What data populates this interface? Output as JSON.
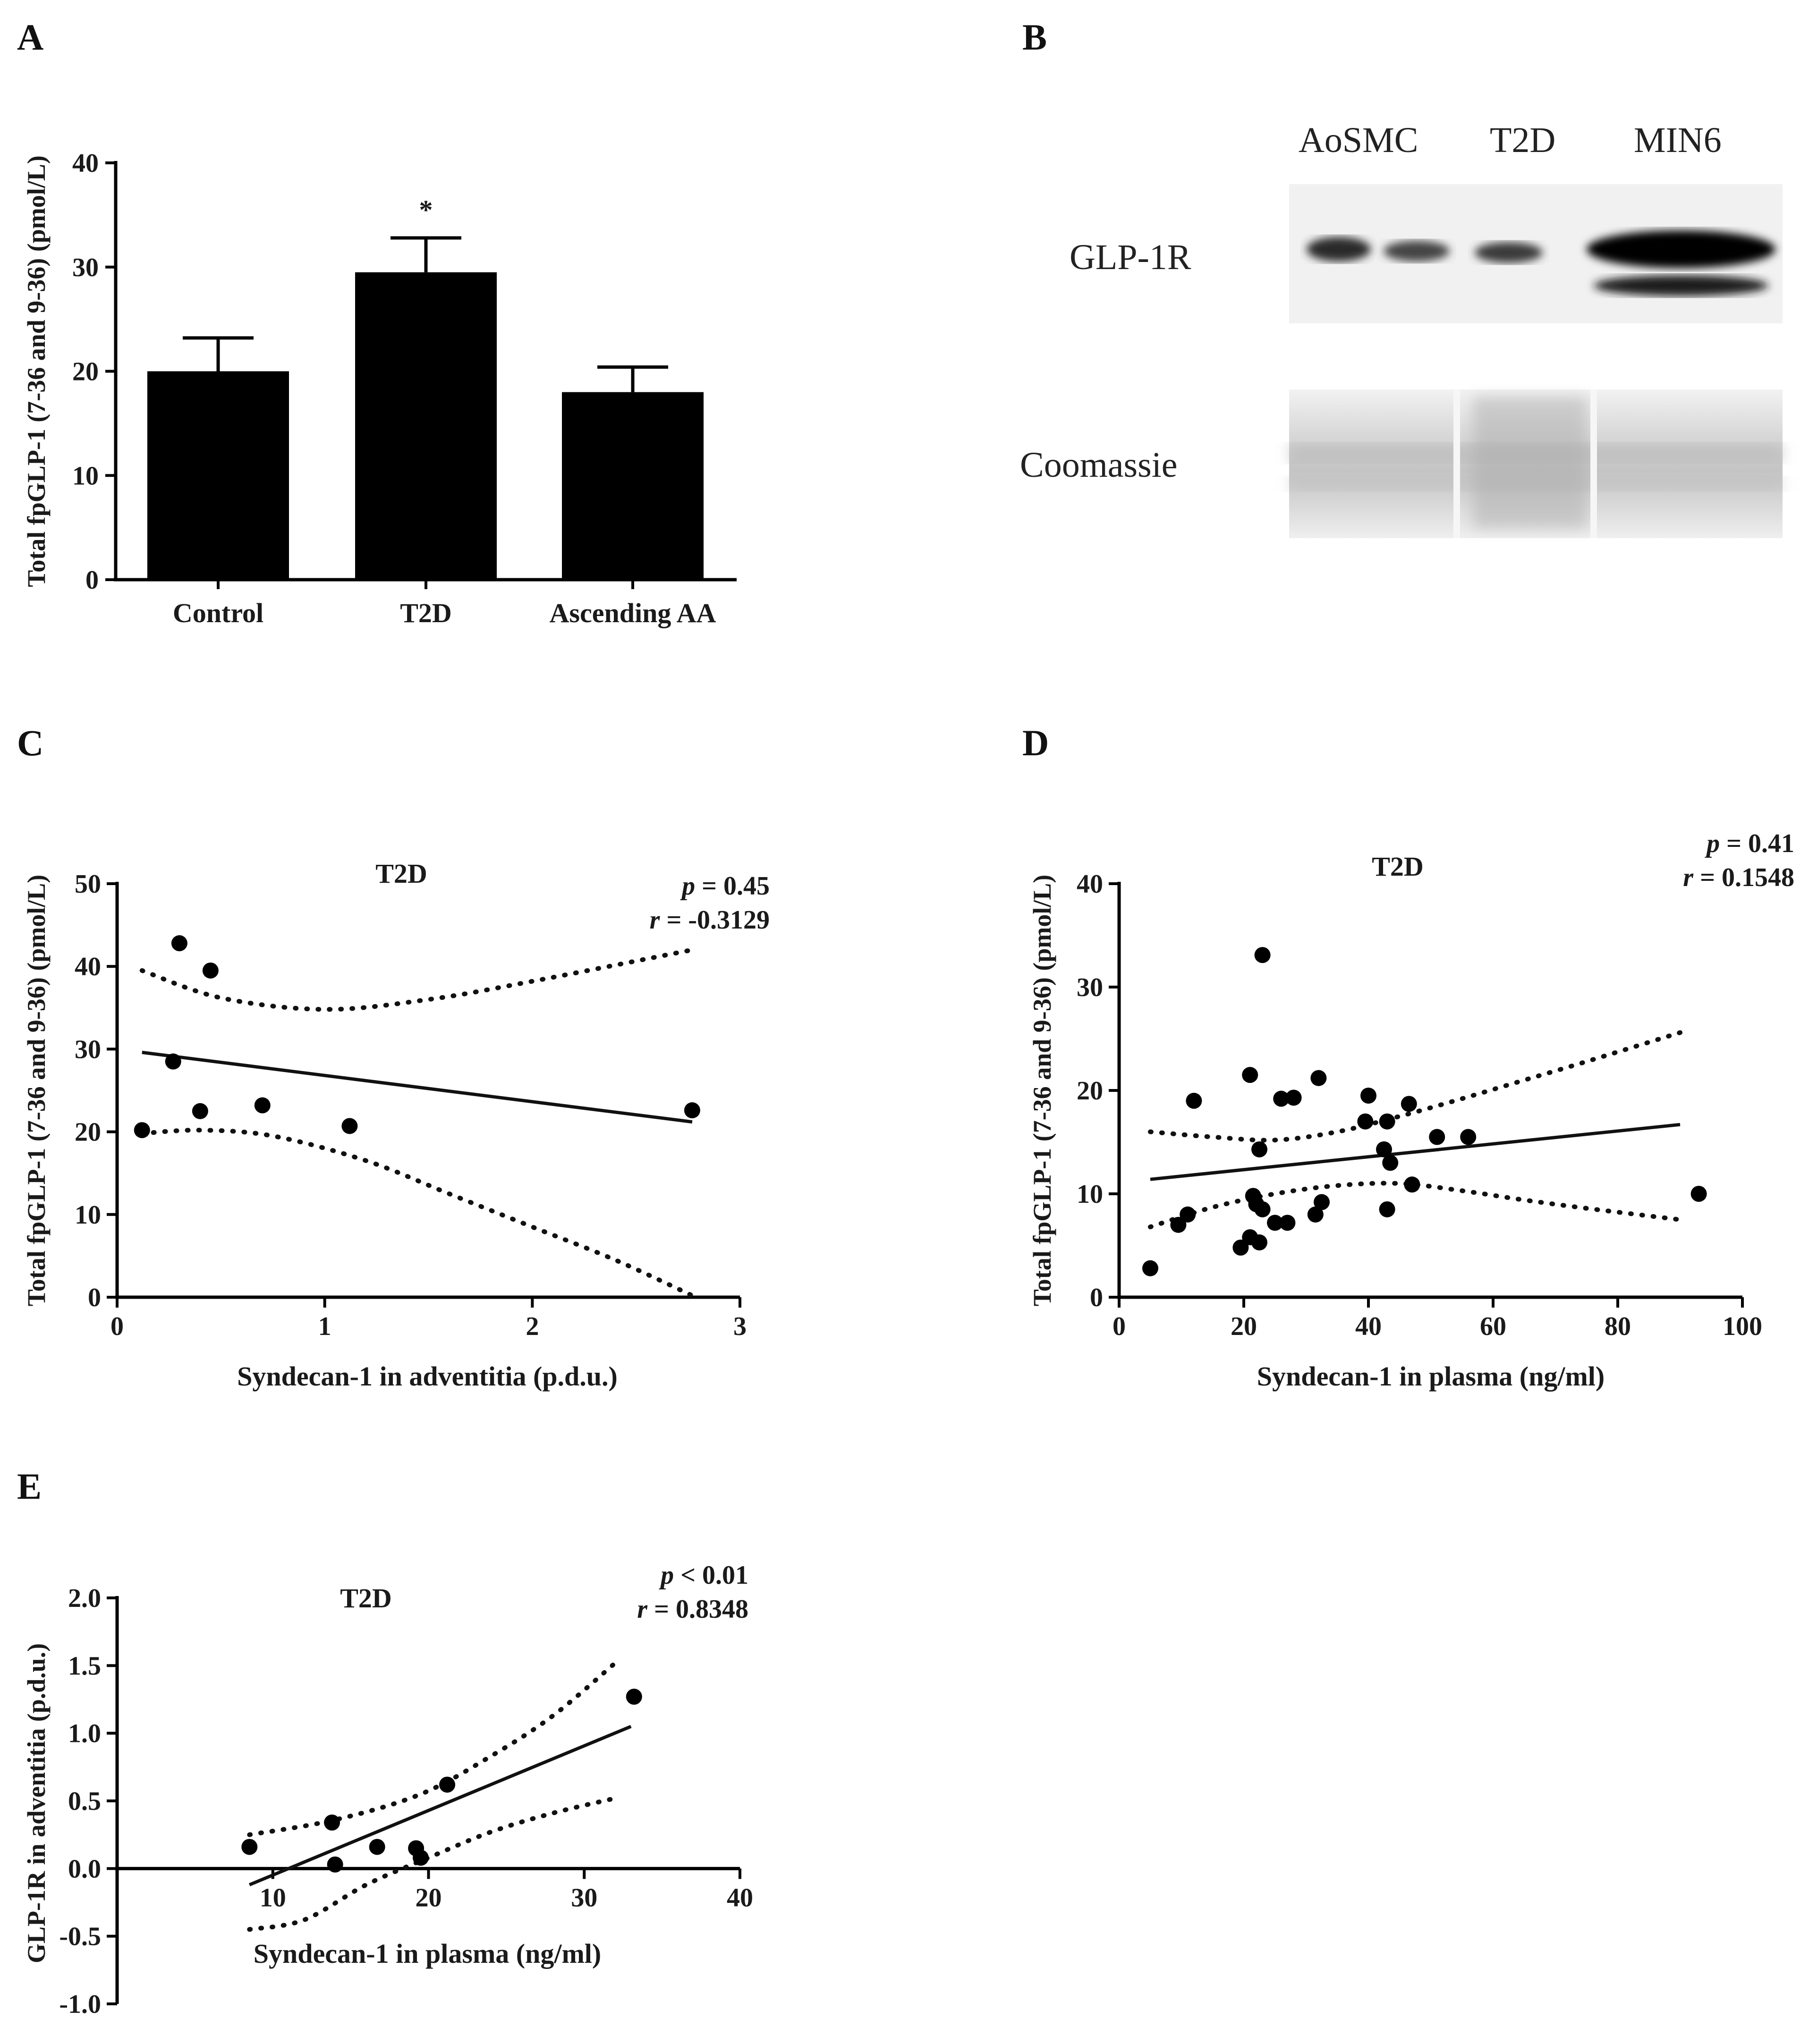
{
  "figure": {
    "panels": {
      "A": "A",
      "B": "B",
      "C": "C",
      "D": "D",
      "E": "E"
    }
  },
  "chart_data": [
    {
      "panel": "A",
      "type": "bar",
      "categories": [
        "Control",
        "T2D",
        "Ascending AA"
      ],
      "values": [
        20,
        29.5,
        18
      ],
      "errors": [
        3.2,
        3.3,
        2.4
      ],
      "annotations": [
        "",
        "*",
        ""
      ],
      "title": "",
      "xlabel": "",
      "ylabel": "Total fpGLP-1 (7-36 and 9-36) (pmol/L)",
      "ylim": [
        0,
        40
      ],
      "yticks": [
        0,
        10,
        20,
        30,
        40
      ]
    },
    {
      "panel": "C",
      "type": "scatter",
      "title": "T2D",
      "xlabel": "Syndecan-1 in adventitia (p.d.u.)",
      "ylabel": "Total fpGLP-1 (7-36 and 9-36) (pmol/L)",
      "xlim": [
        0,
        3
      ],
      "ylim": [
        0,
        50
      ],
      "xticks": [
        0,
        1,
        2,
        3
      ],
      "yticks": [
        0,
        10,
        20,
        30,
        40,
        50
      ],
      "points": [
        [
          0.12,
          20.2
        ],
        [
          0.27,
          28.5
        ],
        [
          0.3,
          42.8
        ],
        [
          0.4,
          22.5
        ],
        [
          0.45,
          39.5
        ],
        [
          0.7,
          23.2
        ],
        [
          1.12,
          20.7
        ],
        [
          2.77,
          22.6
        ]
      ],
      "fit": [
        [
          0.12,
          29.6
        ],
        [
          2.77,
          21.2
        ]
      ],
      "ci_upper": [
        [
          0.12,
          39.5
        ],
        [
          0.5,
          36.2
        ],
        [
          1.0,
          34.8
        ],
        [
          1.5,
          36.0
        ],
        [
          2.0,
          38.2
        ],
        [
          2.77,
          42.0
        ]
      ],
      "ci_lower": [
        [
          0.12,
          19.8
        ],
        [
          0.4,
          20.2
        ],
        [
          0.75,
          19.5
        ],
        [
          1.2,
          16.5
        ],
        [
          1.6,
          12.5
        ],
        [
          2.0,
          8.5
        ],
        [
          2.4,
          4.5
        ],
        [
          2.77,
          0.2
        ]
      ],
      "p_label": "p",
      "p_value": " = 0.45",
      "r_label": "r",
      "r_value": " = -0.3129"
    },
    {
      "panel": "D",
      "type": "scatter",
      "title": "T2D",
      "xlabel": "Syndecan-1 in plasma (ng/ml)",
      "ylabel": "Total fpGLP-1 (7-36 and 9-36) (pmol/L)",
      "xlim": [
        0,
        100
      ],
      "ylim": [
        0,
        40
      ],
      "xticks": [
        0,
        20,
        40,
        60,
        80,
        100
      ],
      "yticks": [
        0,
        10,
        20,
        30,
        40
      ],
      "points": [
        [
          5,
          2.8
        ],
        [
          9.5,
          7.0
        ],
        [
          11,
          8.0
        ],
        [
          12,
          19.0
        ],
        [
          19.5,
          4.8
        ],
        [
          21,
          5.8
        ],
        [
          21,
          21.5
        ],
        [
          21.5,
          9.8
        ],
        [
          22,
          9.0
        ],
        [
          22.5,
          5.3
        ],
        [
          22.5,
          14.3
        ],
        [
          23,
          8.5
        ],
        [
          23,
          33.1
        ],
        [
          25,
          7.2
        ],
        [
          26,
          19.2
        ],
        [
          27,
          7.2
        ],
        [
          28,
          19.3
        ],
        [
          31.5,
          8.0
        ],
        [
          32,
          21.2
        ],
        [
          32.5,
          9.2
        ],
        [
          39.5,
          17.0
        ],
        [
          40,
          19.5
        ],
        [
          42.5,
          14.3
        ],
        [
          43,
          17.0
        ],
        [
          43,
          8.5
        ],
        [
          43.5,
          13.0
        ],
        [
          46.5,
          18.7
        ],
        [
          47,
          10.9
        ],
        [
          51,
          15.5
        ],
        [
          56,
          15.5
        ],
        [
          93,
          10.0
        ]
      ],
      "fit": [
        [
          5,
          11.4
        ],
        [
          90,
          16.7
        ]
      ],
      "ci_upper": [
        [
          5,
          16.0
        ],
        [
          15,
          15.5
        ],
        [
          25,
          15.2
        ],
        [
          35,
          16.0
        ],
        [
          45,
          17.5
        ],
        [
          55,
          19.2
        ],
        [
          65,
          21.0
        ],
        [
          75,
          22.8
        ],
        [
          90,
          25.6
        ]
      ],
      "ci_lower": [
        [
          5,
          6.8
        ],
        [
          15,
          8.7
        ],
        [
          25,
          10.0
        ],
        [
          35,
          10.8
        ],
        [
          45,
          11.0
        ],
        [
          55,
          10.3
        ],
        [
          65,
          9.4
        ],
        [
          75,
          8.6
        ],
        [
          90,
          7.5
        ]
      ],
      "p_label": "p",
      "p_value": " = 0.41",
      "r_label": "r",
      "r_value": " = 0.1548"
    },
    {
      "panel": "E",
      "type": "scatter",
      "title": "T2D",
      "xlabel": "Syndecan-1 in plasma (ng/ml)",
      "ylabel": "GLP-1R in adventitia (p.d.u.)",
      "xlim": [
        0,
        40
      ],
      "ylim": [
        -1.0,
        2.0
      ],
      "xticks": [
        10,
        20,
        30,
        40
      ],
      "yticks": [
        -1.0,
        -0.5,
        0.0,
        0.5,
        1.0,
        1.5,
        2.0
      ],
      "points": [
        [
          8.5,
          0.16
        ],
        [
          13.8,
          0.34
        ],
        [
          14,
          0.03
        ],
        [
          16.7,
          0.16
        ],
        [
          19.2,
          0.15
        ],
        [
          19.5,
          0.08
        ],
        [
          21.2,
          0.62
        ],
        [
          33.2,
          1.27
        ]
      ],
      "fit": [
        [
          8.5,
          -0.12
        ],
        [
          33,
          1.05
        ]
      ],
      "ci_upper": [
        [
          8.5,
          0.25
        ],
        [
          14,
          0.36
        ],
        [
          19.5,
          0.55
        ],
        [
          24,
          0.83
        ],
        [
          28,
          1.13
        ],
        [
          32,
          1.52
        ]
      ],
      "ci_lower": [
        [
          8.5,
          -0.45
        ],
        [
          12,
          -0.38
        ],
        [
          16,
          -0.12
        ],
        [
          20,
          0.08
        ],
        [
          24,
          0.27
        ],
        [
          28,
          0.41
        ],
        [
          32,
          0.52
        ]
      ],
      "p_label": "p",
      "p_value": " < 0.01",
      "r_label": "r",
      "r_value": " = 0.8348"
    }
  ],
  "blot": {
    "columns": [
      "AoSMC",
      "T2D",
      "MIN6"
    ],
    "rows": [
      "GLP-1R",
      "Coomassie"
    ]
  }
}
